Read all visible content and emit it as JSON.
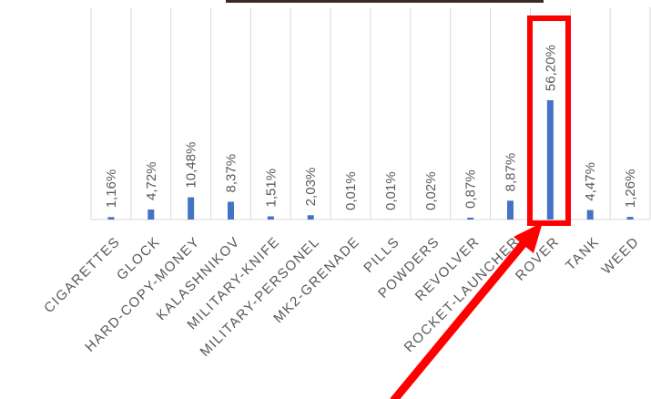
{
  "chart_data": {
    "type": "bar",
    "categories": [
      "CIGARETTES",
      "GLOCK",
      "HARD-COPY-MONEY",
      "KALASHNIKOV",
      "MILITARY-KNIFE",
      "MILITARY-PERSONEL",
      "MK2-GRENADE",
      "PILLS",
      "POWDERS",
      "REVOLVER",
      "ROCKET-LAUNCHER",
      "ROVER",
      "TANK",
      "WEED"
    ],
    "values": [
      1.16,
      4.72,
      10.48,
      8.37,
      1.51,
      2.03,
      0.01,
      0.01,
      0.02,
      0.87,
      8.87,
      56.2,
      4.47,
      1.26
    ],
    "value_labels": [
      "1,16%",
      "4,72%",
      "10,48%",
      "8,37%",
      "1,51%",
      "2,03%",
      "0,01%",
      "0,01%",
      "0,02%",
      "0,87%",
      "8,87%",
      "56,20%",
      "4,47%",
      "1,26%"
    ],
    "color": "#4472c4",
    "ylim": [
      0,
      100
    ]
  }
}
